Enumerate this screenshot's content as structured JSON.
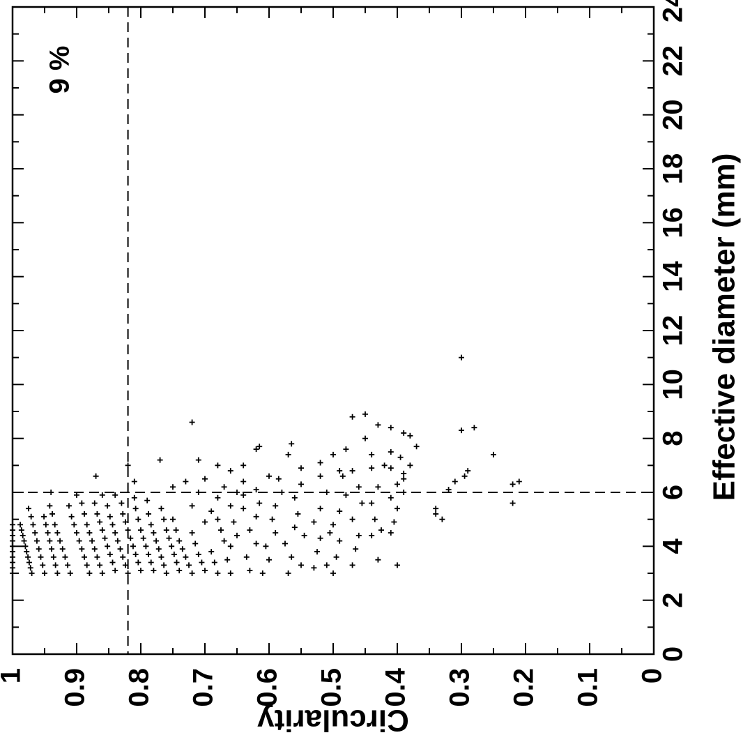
{
  "chart_data": {
    "type": "scatter",
    "title": "",
    "xlabel": "Effective diameter (mm)",
    "ylabel": "Circularity",
    "annotation": "9 %",
    "x_ticks": [
      "0",
      "2",
      "4",
      "6",
      "8",
      "10",
      "12",
      "14",
      "16",
      "18",
      "20",
      "22",
      "24"
    ],
    "y_ticks": [
      "0",
      "0.1",
      "0.2",
      "0.3",
      "0.4",
      "0.5",
      "0.6",
      "0.7",
      "0.8",
      "0.9",
      "1"
    ],
    "xlim": [
      0,
      24
    ],
    "ylim": [
      0,
      1
    ],
    "grid": false,
    "rotation": "chart rotated 90 degrees counter-clockwise",
    "reference_lines": {
      "diameter": 6,
      "circularity": 0.82
    },
    "points": [
      [
        3.0,
        1.0
      ],
      [
        3.2,
        1.0
      ],
      [
        3.4,
        1.0
      ],
      [
        3.6,
        1.0
      ],
      [
        3.8,
        1.0
      ],
      [
        4.0,
        1.0
      ],
      [
        4.2,
        1.0
      ],
      [
        4.4,
        1.0
      ],
      [
        4.6,
        1.0
      ],
      [
        4.8,
        1.0
      ],
      [
        3.0,
        0.97
      ],
      [
        3.2,
        0.972
      ],
      [
        3.4,
        0.974
      ],
      [
        3.6,
        0.976
      ],
      [
        3.8,
        0.978
      ],
      [
        4.0,
        0.98
      ],
      [
        4.2,
        0.982
      ],
      [
        4.4,
        0.984
      ],
      [
        4.6,
        0.986
      ],
      [
        4.8,
        0.988
      ],
      [
        3.0,
        0.95
      ],
      [
        3.3,
        0.953
      ],
      [
        3.6,
        0.956
      ],
      [
        3.9,
        0.959
      ],
      [
        4.2,
        0.962
      ],
      [
        4.5,
        0.965
      ],
      [
        4.8,
        0.968
      ],
      [
        5.1,
        0.971
      ],
      [
        5.4,
        0.975
      ],
      [
        3.0,
        0.93
      ],
      [
        3.3,
        0.933
      ],
      [
        3.6,
        0.936
      ],
      [
        3.9,
        0.939
      ],
      [
        4.2,
        0.942
      ],
      [
        4.5,
        0.945
      ],
      [
        4.8,
        0.948
      ],
      [
        5.1,
        0.951
      ],
      [
        6.0,
        0.94
      ],
      [
        3.0,
        0.91
      ],
      [
        3.3,
        0.914
      ],
      [
        3.6,
        0.918
      ],
      [
        3.9,
        0.922
      ],
      [
        4.2,
        0.926
      ],
      [
        4.5,
        0.93
      ],
      [
        4.8,
        0.934
      ],
      [
        5.2,
        0.938
      ],
      [
        5.5,
        0.942
      ],
      [
        3.0,
        0.88
      ],
      [
        3.3,
        0.884
      ],
      [
        3.6,
        0.888
      ],
      [
        3.9,
        0.892
      ],
      [
        4.2,
        0.896
      ],
      [
        4.5,
        0.9
      ],
      [
        4.8,
        0.904
      ],
      [
        5.1,
        0.908
      ],
      [
        5.5,
        0.912
      ],
      [
        5.9,
        0.9
      ],
      [
        3.0,
        0.86
      ],
      [
        3.3,
        0.864
      ],
      [
        3.6,
        0.868
      ],
      [
        3.9,
        0.872
      ],
      [
        4.2,
        0.876
      ],
      [
        4.5,
        0.88
      ],
      [
        4.8,
        0.884
      ],
      [
        5.2,
        0.888
      ],
      [
        5.6,
        0.892
      ],
      [
        6.6,
        0.87
      ],
      [
        3.1,
        0.84
      ],
      [
        3.4,
        0.844
      ],
      [
        3.7,
        0.848
      ],
      [
        4.0,
        0.852
      ],
      [
        4.3,
        0.856
      ],
      [
        4.6,
        0.86
      ],
      [
        4.9,
        0.864
      ],
      [
        5.2,
        0.868
      ],
      [
        5.6,
        0.872
      ],
      [
        5.9,
        0.86
      ],
      [
        3.0,
        0.82
      ],
      [
        3.3,
        0.824
      ],
      [
        3.6,
        0.828
      ],
      [
        3.9,
        0.832
      ],
      [
        4.2,
        0.836
      ],
      [
        4.5,
        0.84
      ],
      [
        4.8,
        0.844
      ],
      [
        5.1,
        0.848
      ],
      [
        5.5,
        0.852
      ],
      [
        5.9,
        0.84
      ],
      [
        3.1,
        0.8
      ],
      [
        3.4,
        0.804
      ],
      [
        3.7,
        0.808
      ],
      [
        4.0,
        0.812
      ],
      [
        4.3,
        0.816
      ],
      [
        4.6,
        0.82
      ],
      [
        4.9,
        0.824
      ],
      [
        5.2,
        0.828
      ],
      [
        5.6,
        0.83
      ],
      [
        7.0,
        0.82
      ],
      [
        3.1,
        0.78
      ],
      [
        3.4,
        0.784
      ],
      [
        3.7,
        0.788
      ],
      [
        4.0,
        0.792
      ],
      [
        4.3,
        0.796
      ],
      [
        4.6,
        0.8
      ],
      [
        5.0,
        0.804
      ],
      [
        5.4,
        0.808
      ],
      [
        5.8,
        0.81
      ],
      [
        6.4,
        0.81
      ],
      [
        3.0,
        0.76
      ],
      [
        3.3,
        0.764
      ],
      [
        3.6,
        0.768
      ],
      [
        3.9,
        0.772
      ],
      [
        4.2,
        0.776
      ],
      [
        4.5,
        0.78
      ],
      [
        4.8,
        0.784
      ],
      [
        5.2,
        0.788
      ],
      [
        5.7,
        0.79
      ],
      [
        7.2,
        0.77
      ],
      [
        3.1,
        0.74
      ],
      [
        3.4,
        0.744
      ],
      [
        3.7,
        0.748
      ],
      [
        4.0,
        0.752
      ],
      [
        4.3,
        0.756
      ],
      [
        4.6,
        0.76
      ],
      [
        5.0,
        0.764
      ],
      [
        5.4,
        0.768
      ],
      [
        6.2,
        0.75
      ],
      [
        6.4,
        0.73
      ],
      [
        3.0,
        0.72
      ],
      [
        3.3,
        0.725
      ],
      [
        3.6,
        0.73
      ],
      [
        3.9,
        0.735
      ],
      [
        4.2,
        0.74
      ],
      [
        4.6,
        0.745
      ],
      [
        5.0,
        0.75
      ],
      [
        5.5,
        0.72
      ],
      [
        6.0,
        0.71
      ],
      [
        8.6,
        0.72
      ],
      [
        3.1,
        0.7
      ],
      [
        3.4,
        0.705
      ],
      [
        3.7,
        0.71
      ],
      [
        4.1,
        0.715
      ],
      [
        4.5,
        0.72
      ],
      [
        4.9,
        0.7
      ],
      [
        5.3,
        0.69
      ],
      [
        5.8,
        0.68
      ],
      [
        6.5,
        0.7
      ],
      [
        7.2,
        0.71
      ],
      [
        3.0,
        0.68
      ],
      [
        3.4,
        0.685
      ],
      [
        3.8,
        0.69
      ],
      [
        4.2,
        0.67
      ],
      [
        4.6,
        0.675
      ],
      [
        5.0,
        0.68
      ],
      [
        5.5,
        0.66
      ],
      [
        6.0,
        0.65
      ],
      [
        6.8,
        0.66
      ],
      [
        7.0,
        0.68
      ],
      [
        3.0,
        0.66
      ],
      [
        3.5,
        0.665
      ],
      [
        4.0,
        0.66
      ],
      [
        4.4,
        0.65
      ],
      [
        4.9,
        0.655
      ],
      [
        5.4,
        0.64
      ],
      [
        5.9,
        0.64
      ],
      [
        6.4,
        0.64
      ],
      [
        7.0,
        0.64
      ],
      [
        6.2,
        0.67
      ],
      [
        3.1,
        0.63
      ],
      [
        3.6,
        0.635
      ],
      [
        4.1,
        0.62
      ],
      [
        4.6,
        0.63
      ],
      [
        5.1,
        0.62
      ],
      [
        5.6,
        0.615
      ],
      [
        6.1,
        0.62
      ],
      [
        6.6,
        0.6
      ],
      [
        7.6,
        0.62
      ],
      [
        7.7,
        0.615
      ],
      [
        3.0,
        0.61
      ],
      [
        3.5,
        0.6
      ],
      [
        4.0,
        0.605
      ],
      [
        4.5,
        0.59
      ],
      [
        5.0,
        0.595
      ],
      [
        5.5,
        0.59
      ],
      [
        6.0,
        0.58
      ],
      [
        6.5,
        0.585
      ],
      [
        7.4,
        0.57
      ],
      [
        7.8,
        0.565
      ],
      [
        3.0,
        0.57
      ],
      [
        3.6,
        0.565
      ],
      [
        4.1,
        0.575
      ],
      [
        4.7,
        0.56
      ],
      [
        5.2,
        0.555
      ],
      [
        5.8,
        0.56
      ],
      [
        6.3,
        0.55
      ],
      [
        6.9,
        0.55
      ],
      [
        3.3,
        0.55
      ],
      [
        4.4,
        0.545
      ],
      [
        3.2,
        0.53
      ],
      [
        3.8,
        0.525
      ],
      [
        4.3,
        0.52
      ],
      [
        4.9,
        0.53
      ],
      [
        5.4,
        0.52
      ],
      [
        6.0,
        0.51
      ],
      [
        6.6,
        0.52
      ],
      [
        7.1,
        0.52
      ],
      [
        7.4,
        0.5
      ],
      [
        6.8,
        0.49
      ],
      [
        3.0,
        0.5
      ],
      [
        3.6,
        0.495
      ],
      [
        4.2,
        0.49
      ],
      [
        4.8,
        0.5
      ],
      [
        5.3,
        0.49
      ],
      [
        5.9,
        0.48
      ],
      [
        6.6,
        0.485
      ],
      [
        7.6,
        0.48
      ],
      [
        3.3,
        0.51
      ],
      [
        4.5,
        0.505
      ],
      [
        3.3,
        0.47
      ],
      [
        3.9,
        0.465
      ],
      [
        4.4,
        0.46
      ],
      [
        5.0,
        0.47
      ],
      [
        5.6,
        0.455
      ],
      [
        6.2,
        0.46
      ],
      [
        6.8,
        0.47
      ],
      [
        8.8,
        0.47
      ],
      [
        8.9,
        0.45
      ],
      [
        8.0,
        0.45
      ],
      [
        4.4,
        0.44
      ],
      [
        5.0,
        0.435
      ],
      [
        5.6,
        0.44
      ],
      [
        6.2,
        0.43
      ],
      [
        6.9,
        0.44
      ],
      [
        7.4,
        0.44
      ],
      [
        3.5,
        0.43
      ],
      [
        4.6,
        0.425
      ],
      [
        8.5,
        0.43
      ],
      [
        7.0,
        0.42
      ],
      [
        4.5,
        0.41
      ],
      [
        4.9,
        0.405
      ],
      [
        5.4,
        0.4
      ],
      [
        5.8,
        0.41
      ],
      [
        6.3,
        0.4
      ],
      [
        6.9,
        0.41
      ],
      [
        7.5,
        0.41
      ],
      [
        8.4,
        0.41
      ],
      [
        3.3,
        0.4
      ],
      [
        6.0,
        0.39
      ],
      [
        6.7,
        0.39
      ],
      [
        7.3,
        0.395
      ],
      [
        8.2,
        0.39
      ],
      [
        8.1,
        0.38
      ],
      [
        7.7,
        0.37
      ],
      [
        7.0,
        0.38
      ],
      [
        6.5,
        0.39
      ],
      [
        5.4,
        0.34
      ],
      [
        5.2,
        0.34
      ],
      [
        5.0,
        0.33
      ],
      [
        6.1,
        0.32
      ],
      [
        6.4,
        0.31
      ],
      [
        6.6,
        0.295
      ],
      [
        6.8,
        0.29
      ],
      [
        8.3,
        0.3
      ],
      [
        8.4,
        0.28
      ],
      [
        11.0,
        0.3
      ],
      [
        7.4,
        0.25
      ],
      [
        6.3,
        0.22
      ],
      [
        6.4,
        0.21
      ],
      [
        5.6,
        0.22
      ]
    ]
  }
}
